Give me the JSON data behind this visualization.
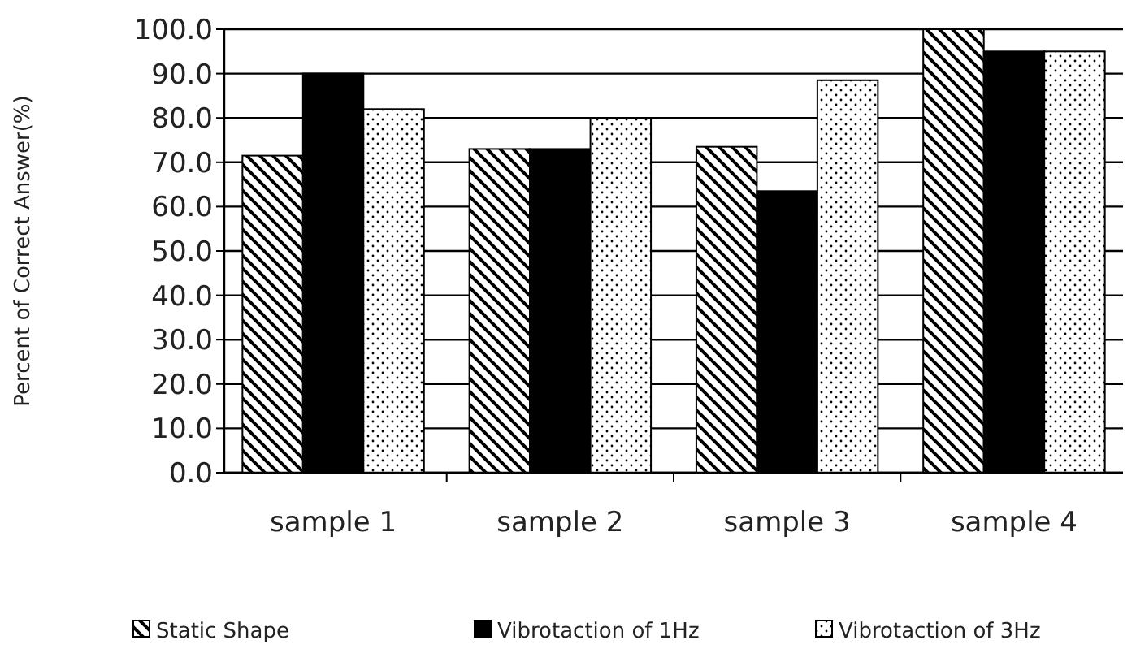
{
  "chart_data": {
    "type": "bar",
    "ylabel": "Percent of Correct Answer(%)",
    "categories": [
      "sample 1",
      "sample 2",
      "sample 3",
      "sample 4"
    ],
    "series": [
      {
        "name": "Static Shape",
        "color": "#000000",
        "values": [
          71.5,
          73,
          73.5,
          100
        ]
      },
      {
        "name": "Vibrotaction of 1Hz",
        "color": "#000000",
        "values": [
          90,
          73,
          63.5,
          95
        ]
      },
      {
        "name": "Vibrotaction of 3Hz",
        "color": "#000000",
        "values": [
          82,
          80,
          88.5,
          95
        ]
      }
    ],
    "ylim": [
      0,
      100
    ],
    "yticks": [
      {
        "value": 0,
        "label": "0.0"
      },
      {
        "value": 10,
        "label": "10.0"
      },
      {
        "value": 20,
        "label": "20.0"
      },
      {
        "value": 30,
        "label": "30.0"
      },
      {
        "value": 40,
        "label": "40.0"
      },
      {
        "value": 50,
        "label": "50.0"
      },
      {
        "value": 60,
        "label": "60.0"
      },
      {
        "value": 70,
        "label": "70.0"
      },
      {
        "value": 80,
        "label": "80.0"
      },
      {
        "value": 90,
        "label": "90.0"
      },
      {
        "value": 100,
        "label": "100.0"
      }
    ],
    "grid": "y",
    "legend": "bottom"
  }
}
